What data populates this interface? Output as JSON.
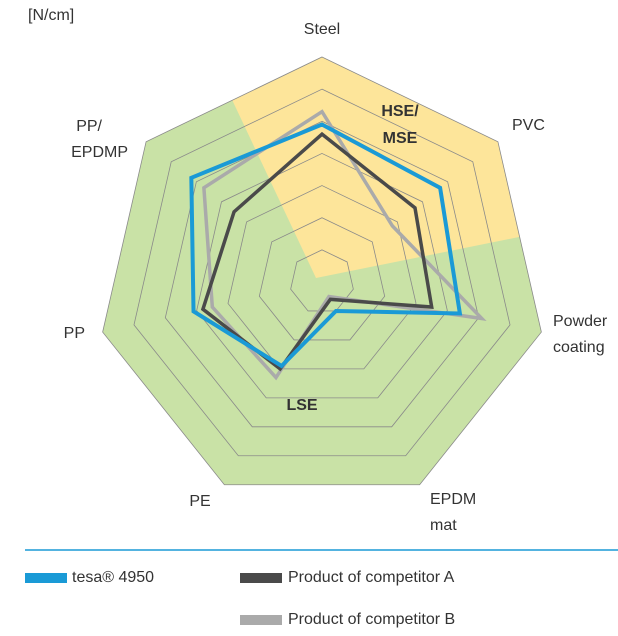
{
  "chart_data": {
    "type": "radar",
    "unit_label": "[N/cm]",
    "categories": [
      "Steel",
      "PVC",
      "Powder coating",
      "EPDM mat",
      "PE",
      "PP",
      "PP/ EPDMP"
    ],
    "zones": [
      {
        "label": "HSE/ MSE",
        "color": "#fde59a"
      },
      {
        "label": "LSE",
        "color": "#c9e2a6"
      }
    ],
    "rlim": [
      0,
      7
    ],
    "rticks": [
      1,
      2,
      3,
      4,
      5,
      6,
      7
    ],
    "grid": true,
    "series": [
      {
        "name": "tesa® 4950",
        "color": "#1a9ad6",
        "values": [
          4.9,
          4.7,
          4.4,
          1.0,
          2.9,
          4.1,
          5.2
        ]
      },
      {
        "name": "Product of competitor A",
        "color": "#4a4a4a",
        "values": [
          4.6,
          3.7,
          3.5,
          0.6,
          3.0,
          3.8,
          3.5
        ]
      },
      {
        "name": "Product of competitor B",
        "color": "#aaaaaa",
        "values": [
          5.3,
          2.8,
          5.1,
          0.5,
          3.3,
          3.5,
          4.7
        ]
      }
    ]
  }
}
